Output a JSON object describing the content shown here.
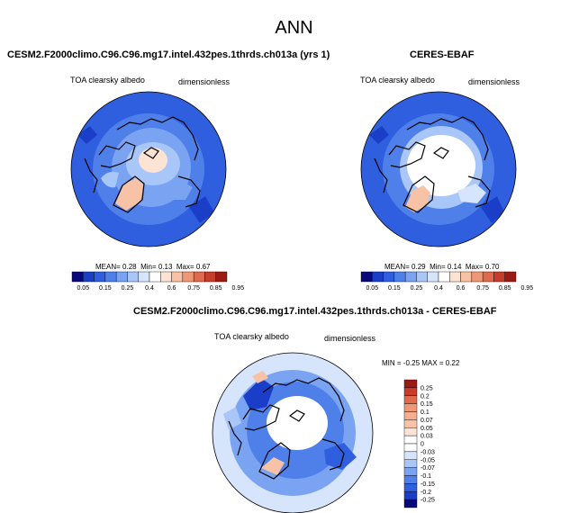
{
  "title": "ANN",
  "chart_data": [
    {
      "type": "heatmap",
      "title": "CESM2.F2000climo.C96.C96.mg17.intel.432pes.1thrds.ch013a (yrs 1)",
      "variable": "TOA clearsky albedo",
      "units": "dimensionless",
      "stats": {
        "mean_label": "MEAN=",
        "mean": "0.28",
        "min_label": "Min=",
        "min": "0.13",
        "max_label": "Max=",
        "max": "0.67"
      },
      "colorbar": {
        "orientation": "horizontal",
        "levels": [
          "0.05",
          "0.15",
          "0.25",
          "0.4",
          "0.6",
          "0.75",
          "0.85",
          "0.95"
        ],
        "colors": [
          "#08087a",
          "#1a3ec8",
          "#2f5fdf",
          "#4f80ea",
          "#7aa3f2",
          "#a9c6f8",
          "#d6e5fc",
          "#ffffff",
          "#fde3d3",
          "#f8c2a6",
          "#ef9878",
          "#df6a4d",
          "#c63d2c",
          "#9c1a14"
        ]
      }
    },
    {
      "type": "heatmap",
      "title": "CERES-EBAF",
      "variable": "TOA clearsky albedo",
      "units": "dimensionless",
      "stats": {
        "mean_label": "MEAN=",
        "mean": "0.29",
        "min_label": "Min=",
        "min": "0.14",
        "max_label": "Max=",
        "max": "0.70"
      },
      "colorbar": {
        "orientation": "horizontal",
        "levels": [
          "0.05",
          "0.15",
          "0.25",
          "0.4",
          "0.6",
          "0.75",
          "0.85",
          "0.95"
        ],
        "colors": [
          "#08087a",
          "#1a3ec8",
          "#2f5fdf",
          "#4f80ea",
          "#7aa3f2",
          "#a9c6f8",
          "#d6e5fc",
          "#ffffff",
          "#fde3d3",
          "#f8c2a6",
          "#ef9878",
          "#df6a4d",
          "#c63d2c",
          "#9c1a14"
        ]
      }
    },
    {
      "type": "heatmap",
      "title": "CESM2.F2000climo.C96.C96.mg17.intel.432pes.1thrds.ch013a - CERES-EBAF",
      "variable": "TOA clearsky albedo",
      "units": "dimensionless",
      "stats": {
        "min_label": "MIN =",
        "min": "-0.25",
        "max_label": "MAX =",
        "max": "0.22"
      },
      "colorbar": {
        "orientation": "vertical",
        "levels": [
          "0.25",
          "0.2",
          "0.15",
          "0.1",
          "0.07",
          "0.05",
          "0.03",
          "0",
          "-0.03",
          "-0.05",
          "-0.07",
          "-0.1",
          "-0.15",
          "-0.2",
          "-0.25"
        ],
        "colors": [
          "#9c1a14",
          "#c63d2c",
          "#df6a4d",
          "#ef9878",
          "#f4ae8f",
          "#f8c2a6",
          "#fde3d3",
          "#ffffff",
          "#ffffff",
          "#d6e5fc",
          "#a9c6f8",
          "#7aa3f2",
          "#4f80ea",
          "#2f5fdf",
          "#1a3ec8",
          "#08087a"
        ]
      }
    }
  ]
}
